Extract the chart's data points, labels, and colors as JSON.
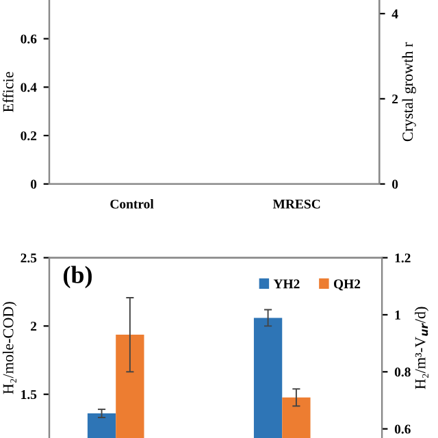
{
  "chart_data": [
    {
      "type": "bar",
      "ylabel": "Efficie",
      "y2label": "Crystal growth r",
      "categories": [
        "Control",
        "MRESC"
      ],
      "series": [
        {
          "color": "#e8383d",
          "values": [
            null,
            null
          ]
        },
        {
          "color": "#70b048",
          "values": [
            null,
            null
          ],
          "axis": "y2"
        }
      ],
      "ylim": [
        0,
        0.76
      ],
      "yticks": [
        0,
        0.2,
        0.4,
        0.6
      ],
      "y2lim": [
        0,
        4.32
      ],
      "y2ticks": [
        0,
        2,
        4
      ],
      "grid": false,
      "legend": false
    },
    {
      "type": "bar",
      "ylabel": "H₂/mole-COD)",
      "y2label": "H₂/m³-V$_{ur}$/d)",
      "categories": [
        null,
        null
      ],
      "annotations": [
        "(b)"
      ],
      "series": [
        {
          "name": "YH2",
          "color": "#2e75b6",
          "values": [
            1.36,
            2.06
          ],
          "errors": [
            0.03,
            0.06
          ]
        },
        {
          "name": "QH2",
          "color": "#ed7d31",
          "values": [
            0.93,
            0.71
          ],
          "errors": [
            0.13,
            0.03
          ],
          "axis": "y2"
        }
      ],
      "ylim": [
        1.18,
        2.5
      ],
      "yticks": [
        1.5,
        2,
        2.5
      ],
      "y2lim": [
        0.568,
        1.2
      ],
      "y2ticks": [
        0.6,
        0.8,
        1,
        1.2
      ],
      "grid": false,
      "legend": "top right"
    }
  ]
}
